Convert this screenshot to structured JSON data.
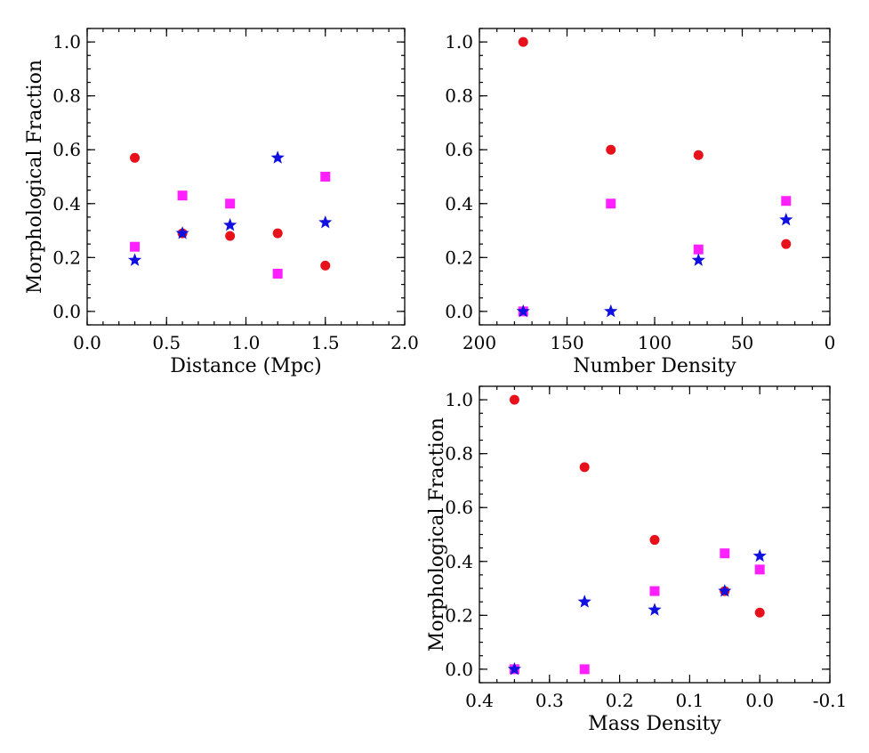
{
  "colors": {
    "red": "#e8101a",
    "magenta": "#ff20ff",
    "blue": "#1010e0"
  },
  "chart_data": [
    {
      "type": "scatter",
      "xlabel": "Distance (Mpc)",
      "ylabel": "Morphological Fraction",
      "xlim": [
        0.0,
        2.0
      ],
      "ylim": [
        -0.05,
        1.05
      ],
      "xticks": [
        "0.0",
        "0.5",
        "1.0",
        "1.5",
        "2.0"
      ],
      "xtick_values": [
        0.0,
        0.5,
        1.0,
        1.5,
        2.0
      ],
      "xminor_step": 0.1,
      "yticks": [
        "0.0",
        "0.2",
        "0.4",
        "0.6",
        "0.8",
        "1.0"
      ],
      "ytick_values": [
        0.0,
        0.2,
        0.4,
        0.6,
        0.8,
        1.0
      ],
      "yminor_step": 0.05,
      "series": [
        {
          "marker": "circle",
          "color": "#e8101a",
          "x": [
            0.3,
            0.6,
            0.9,
            1.2,
            1.5
          ],
          "y": [
            0.57,
            0.29,
            0.28,
            0.29,
            0.17
          ]
        },
        {
          "marker": "square",
          "color": "#ff20ff",
          "x": [
            0.3,
            0.6,
            0.9,
            1.2,
            1.5
          ],
          "y": [
            0.24,
            0.43,
            0.4,
            0.14,
            0.5
          ]
        },
        {
          "marker": "star",
          "color": "#1010e0",
          "x": [
            0.3,
            0.6,
            0.9,
            1.2,
            1.5
          ],
          "y": [
            0.19,
            0.29,
            0.32,
            0.57,
            0.33
          ]
        }
      ]
    },
    {
      "type": "scatter",
      "xlabel": "Number Density",
      "ylabel": "",
      "xlim": [
        200,
        0
      ],
      "ylim": [
        -0.05,
        1.05
      ],
      "xticks": [
        "200",
        "150",
        "100",
        "50",
        "0"
      ],
      "xtick_values": [
        200,
        150,
        100,
        50,
        0
      ],
      "xminor_step": 10,
      "yticks": [
        "0.0",
        "0.2",
        "0.4",
        "0.6",
        "0.8",
        "1.0"
      ],
      "ytick_values": [
        0.0,
        0.2,
        0.4,
        0.6,
        0.8,
        1.0
      ],
      "yminor_step": 0.05,
      "series": [
        {
          "marker": "circle",
          "color": "#e8101a",
          "x": [
            175,
            125,
            75,
            25
          ],
          "y": [
            1.0,
            0.6,
            0.58,
            0.25
          ]
        },
        {
          "marker": "square",
          "color": "#ff20ff",
          "x": [
            175,
            125,
            75,
            25
          ],
          "y": [
            0.0,
            0.4,
            0.23,
            0.41
          ]
        },
        {
          "marker": "star",
          "color": "#1010e0",
          "x": [
            175,
            125,
            75,
            25
          ],
          "y": [
            0.0,
            0.0,
            0.19,
            0.34
          ]
        }
      ]
    },
    {
      "type": "scatter",
      "xlabel": "Mass Density",
      "ylabel": "Morphological Fraction",
      "xlim": [
        0.4,
        -0.1
      ],
      "ylim": [
        -0.05,
        1.05
      ],
      "xticks": [
        "0.4",
        "0.3",
        "0.2",
        "0.1",
        "0.0",
        "-0.1"
      ],
      "xtick_values": [
        0.4,
        0.3,
        0.2,
        0.1,
        0.0,
        -0.1
      ],
      "xminor_step": 0.025,
      "yticks": [
        "0.0",
        "0.2",
        "0.4",
        "0.6",
        "0.8",
        "1.0"
      ],
      "ytick_values": [
        0.0,
        0.2,
        0.4,
        0.6,
        0.8,
        1.0
      ],
      "yminor_step": 0.05,
      "series": [
        {
          "marker": "circle",
          "color": "#e8101a",
          "x": [
            0.35,
            0.25,
            0.15,
            0.05,
            0.0
          ],
          "y": [
            1.0,
            0.75,
            0.48,
            0.29,
            0.21
          ]
        },
        {
          "marker": "square",
          "color": "#ff20ff",
          "x": [
            0.35,
            0.25,
            0.15,
            0.05,
            0.0
          ],
          "y": [
            0.0,
            0.0,
            0.29,
            0.43,
            0.37
          ]
        },
        {
          "marker": "star",
          "color": "#1010e0",
          "x": [
            0.35,
            0.25,
            0.15,
            0.05,
            0.0
          ],
          "y": [
            0.0,
            0.25,
            0.22,
            0.29,
            0.42
          ]
        }
      ]
    }
  ]
}
